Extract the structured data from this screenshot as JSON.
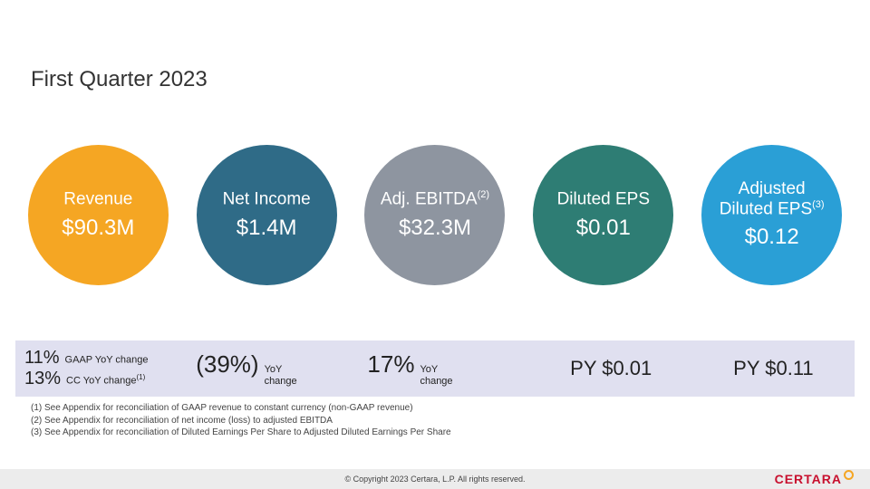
{
  "title": "First Quarter 2023",
  "circles": [
    {
      "label": "Revenue",
      "sup": "",
      "value": "$90.3M",
      "color": "#f5a623"
    },
    {
      "label": "Net Income",
      "sup": "",
      "value": "$1.4M",
      "color": "#2f6b87"
    },
    {
      "label": "Adj. EBITDA",
      "sup": "(2)",
      "value": "$32.3M",
      "color": "#8e95a0"
    },
    {
      "label": "Diluted EPS",
      "sup": "",
      "value": "$0.01",
      "color": "#2e7d74"
    },
    {
      "label": "Adjusted\nDiluted EPS",
      "sup": "(3)",
      "value": "$0.12",
      "color": "#2a9fd6"
    }
  ],
  "changes": {
    "col0": {
      "row0": {
        "big": "11%",
        "small": "GAAP YoY change",
        "sup": ""
      },
      "row1": {
        "big": "13%",
        "small": "CC YoY change",
        "sup": "(1)"
      }
    },
    "col1": {
      "big": "(39%)",
      "small": "YoY\nchange"
    },
    "col2": {
      "big": "17%",
      "small": "YoY\nchange"
    },
    "col3": "PY $0.01",
    "col4": "PY $0.11"
  },
  "footnotes": {
    "f1": "(1)   See Appendix for reconciliation of GAAP revenue to constant currency (non-GAAP revenue)",
    "f2": "(2)   See Appendix for reconciliation of net income (loss) to adjusted EBITDA",
    "f3": "(3)   See Appendix for reconciliation of Diluted Earnings Per Share to Adjusted Diluted Earnings Per Share"
  },
  "copyright": "© Copyright 2023 Certara, L.P.  All rights reserved.",
  "logo_text": "CERTARA"
}
